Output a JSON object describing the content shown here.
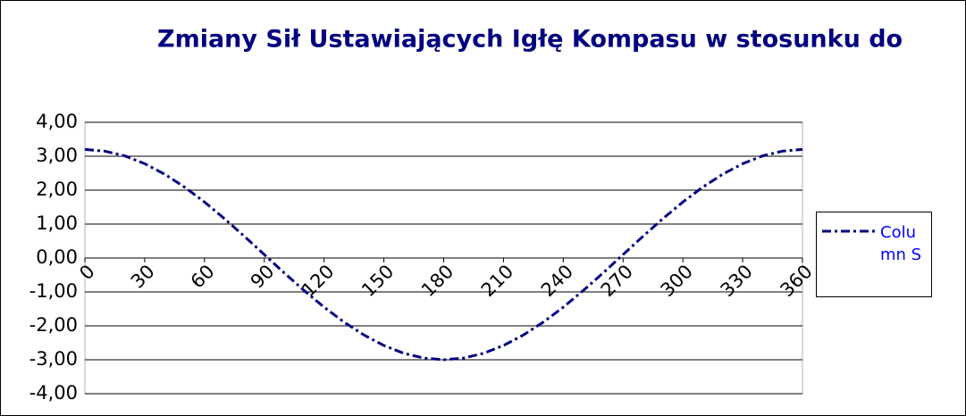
{
  "chart_data": {
    "type": "line",
    "title": "Zmiany Sił Ustawiających Igłę Kompasu w stosunku do",
    "x": [
      0,
      10,
      20,
      30,
      40,
      50,
      60,
      70,
      80,
      90,
      100,
      110,
      120,
      130,
      140,
      150,
      160,
      170,
      180,
      190,
      200,
      210,
      220,
      230,
      240,
      250,
      260,
      270,
      280,
      290,
      300,
      310,
      320,
      330,
      340,
      350,
      360
    ],
    "series": [
      {
        "name": "Column S",
        "color": "#000080",
        "values": [
          3.2,
          3.15,
          3.01,
          2.78,
          2.47,
          2.09,
          1.65,
          1.16,
          0.64,
          0.1,
          -0.44,
          -0.96,
          -1.45,
          -1.89,
          -2.27,
          -2.58,
          -2.81,
          -2.95,
          -3.0,
          -2.95,
          -2.81,
          -2.58,
          -2.27,
          -1.89,
          -1.45,
          -0.96,
          -0.44,
          0.1,
          0.64,
          1.16,
          1.65,
          2.09,
          2.47,
          2.78,
          3.01,
          3.15,
          3.2
        ]
      }
    ],
    "xlim": [
      0,
      360
    ],
    "xticks": [
      0,
      30,
      60,
      90,
      120,
      150,
      180,
      210,
      240,
      270,
      300,
      330,
      360
    ],
    "ylim": [
      -4,
      4
    ],
    "yticks": [
      {
        "value": -4,
        "label": "-4,00"
      },
      {
        "value": -3,
        "label": "-3,00"
      },
      {
        "value": -2,
        "label": "-2,00"
      },
      {
        "value": -1,
        "label": "-1,00"
      },
      {
        "value": 0,
        "label": "0,00"
      },
      {
        "value": 1,
        "label": "1,00"
      },
      {
        "value": 2,
        "label": "2,00"
      },
      {
        "value": 3,
        "label": "3,00"
      },
      {
        "value": 4,
        "label": "4,00"
      }
    ],
    "grid": true,
    "legend": "right"
  }
}
